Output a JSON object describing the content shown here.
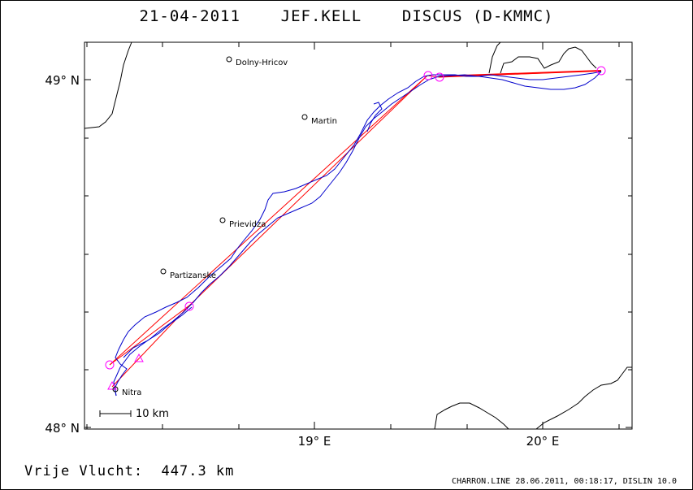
{
  "title": "21-04-2011    JEF.KELL    DISCUS (D-KMMC)",
  "distance_label": "Vrije Vlucht:  447.3 km",
  "footer": "CHARRON.LINE 28.06.2011, 00:18:17, DISLIN 10.0",
  "axes": {
    "lat_labels": [
      "49° N",
      "48° N"
    ],
    "lon_labels": [
      "19° E",
      "20° E"
    ]
  },
  "scale_bar_label": "10 km",
  "places": [
    {
      "name": "Dolny-Hricov"
    },
    {
      "name": "Martin"
    },
    {
      "name": "Prievidza"
    },
    {
      "name": "Partizanske"
    },
    {
      "name": "Nitra"
    }
  ],
  "colors": {
    "track": "#0000cc",
    "route": "#ff0000",
    "turnpoint": "#ff00ff",
    "border": "#000000"
  }
}
